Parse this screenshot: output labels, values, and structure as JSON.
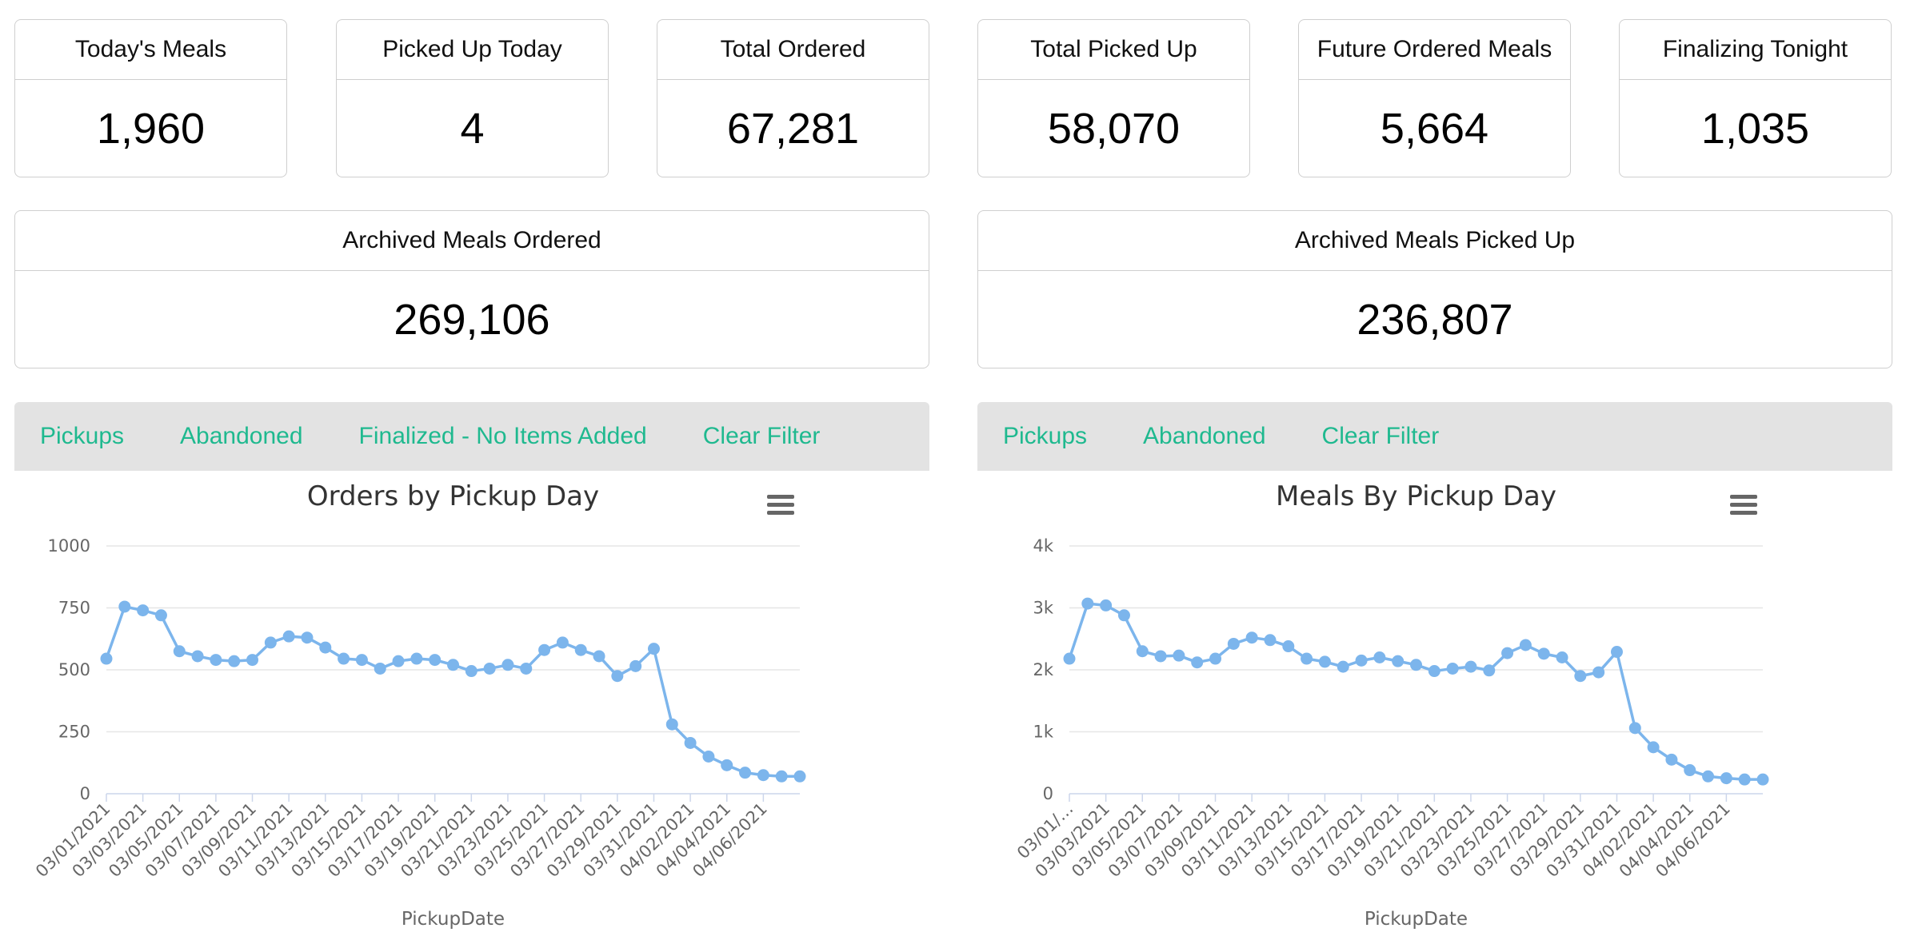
{
  "stats": [
    {
      "label": "Today's Meals",
      "value": "1,960"
    },
    {
      "label": "Picked Up Today",
      "value": "4"
    },
    {
      "label": "Total Ordered",
      "value": "67,281"
    },
    {
      "label": "Total Picked Up",
      "value": "58,070"
    },
    {
      "label": "Future Ordered Meals",
      "value": "5,664"
    },
    {
      "label": "Finalizing Tonight",
      "value": "1,035"
    }
  ],
  "archived": [
    {
      "label": "Archived Meals Ordered",
      "value": "269,106"
    },
    {
      "label": "Archived Meals Picked Up",
      "value": "236,807"
    }
  ],
  "filters_left": [
    "Pickups",
    "Abandoned",
    "Finalized - No Items Added",
    "Clear Filter"
  ],
  "filters_right": [
    "Pickups",
    "Abandoned",
    "Clear Filter"
  ],
  "colors": {
    "accent": "#1fb98f",
    "series": "#7cb5ec",
    "filterbar": "#e3e3e3"
  },
  "menu_icon": "hamburger-menu-icon",
  "chart_data": [
    {
      "type": "line",
      "title": "Orders by Pickup Day",
      "xlabel": "PickupDate",
      "ylabel": "",
      "ylim": [
        0,
        1000
      ],
      "yticks": [
        "0",
        "250",
        "500",
        "750",
        "1000"
      ],
      "grid": true,
      "x": [
        "03/01/2021",
        "03/02/2021",
        "03/03/2021",
        "03/04/2021",
        "03/05/2021",
        "03/06/2021",
        "03/07/2021",
        "03/08/2021",
        "03/09/2021",
        "03/10/2021",
        "03/11/2021",
        "03/12/2021",
        "03/13/2021",
        "03/14/2021",
        "03/15/2021",
        "03/16/2021",
        "03/17/2021",
        "03/18/2021",
        "03/19/2021",
        "03/20/2021",
        "03/21/2021",
        "03/22/2021",
        "03/23/2021",
        "03/24/2021",
        "03/25/2021",
        "03/26/2021",
        "03/27/2021",
        "03/28/2021",
        "03/29/2021",
        "03/30/2021",
        "03/31/2021",
        "04/01/2021",
        "04/02/2021",
        "04/03/2021",
        "04/04/2021",
        "04/05/2021",
        "04/06/2021",
        "04/07/2021",
        "04/08/2021"
      ],
      "xtick_labels": [
        "03/01/2021",
        "03/03/2021",
        "03/05/2021",
        "03/07/2021",
        "03/09/2021",
        "03/11/2021",
        "03/13/2021",
        "03/15/2021",
        "03/17/2021",
        "03/19/2021",
        "03/21/2021",
        "03/23/2021",
        "03/25/2021",
        "03/27/2021",
        "03/29/2021",
        "03/31/2021",
        "04/02/2021",
        "04/04/2021",
        "04/06/2021"
      ],
      "series": [
        {
          "values": [
            545,
            755,
            740,
            720,
            575,
            555,
            540,
            535,
            540,
            610,
            635,
            630,
            590,
            545,
            540,
            505,
            535,
            545,
            540,
            520,
            495,
            505,
            520,
            505,
            580,
            610,
            580,
            555,
            475,
            515,
            585,
            280,
            205,
            150,
            115,
            85,
            75,
            70,
            70
          ]
        }
      ]
    },
    {
      "type": "line",
      "title": "Meals By Pickup Day",
      "xlabel": "PickupDate",
      "ylabel": "",
      "ylim": [
        0,
        4000
      ],
      "yticks": [
        "0",
        "1k",
        "2k",
        "3k",
        "4k"
      ],
      "grid": true,
      "x": [
        "03/01/2021",
        "03/02/2021",
        "03/03/2021",
        "03/04/2021",
        "03/05/2021",
        "03/06/2021",
        "03/07/2021",
        "03/08/2021",
        "03/09/2021",
        "03/10/2021",
        "03/11/2021",
        "03/12/2021",
        "03/13/2021",
        "03/14/2021",
        "03/15/2021",
        "03/16/2021",
        "03/17/2021",
        "03/18/2021",
        "03/19/2021",
        "03/20/2021",
        "03/21/2021",
        "03/22/2021",
        "03/23/2021",
        "03/24/2021",
        "03/25/2021",
        "03/26/2021",
        "03/27/2021",
        "03/28/2021",
        "03/29/2021",
        "03/30/2021",
        "03/31/2021",
        "04/01/2021",
        "04/02/2021",
        "04/03/2021",
        "04/04/2021",
        "04/05/2021",
        "04/06/2021",
        "04/07/2021",
        "04/08/2021"
      ],
      "xtick_labels": [
        "03/01/…",
        "03/03/2021",
        "03/05/2021",
        "03/07/2021",
        "03/09/2021",
        "03/11/2021",
        "03/13/2021",
        "03/15/2021",
        "03/17/2021",
        "03/19/2021",
        "03/21/2021",
        "03/23/2021",
        "03/25/2021",
        "03/27/2021",
        "03/29/2021",
        "03/31/2021",
        "04/02/2021",
        "04/04/2021",
        "04/06/2021"
      ],
      "series": [
        {
          "values": [
            2180,
            3070,
            3040,
            2880,
            2300,
            2220,
            2230,
            2120,
            2180,
            2420,
            2520,
            2480,
            2380,
            2180,
            2130,
            2050,
            2150,
            2200,
            2140,
            2080,
            1980,
            2020,
            2050,
            1990,
            2270,
            2400,
            2260,
            2200,
            1900,
            1960,
            2290,
            1060,
            750,
            550,
            380,
            280,
            250,
            230,
            230
          ]
        }
      ]
    }
  ]
}
